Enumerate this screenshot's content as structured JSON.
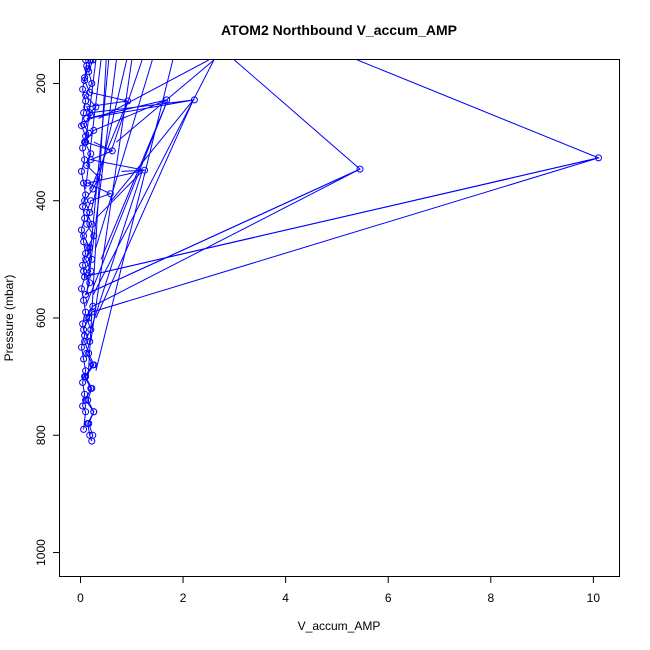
{
  "chart_data": {
    "type": "line",
    "title": "ATOM2 Northbound V_accum_AMP",
    "xlabel": "V_accum_AMP",
    "ylabel": "Pressure (mbar)",
    "xlim": [
      -0.4,
      10.5
    ],
    "ylim": [
      1040,
      160
    ],
    "y_reversed": true,
    "grid": false,
    "legend": "none",
    "x_ticks": [
      0,
      2,
      4,
      6,
      8,
      10
    ],
    "x_tick_labels": [
      "0",
      "2",
      "4",
      "6",
      "8",
      "10"
    ],
    "y_ticks": [
      200,
      400,
      600,
      800,
      1000
    ],
    "y_tick_labels": [
      "200",
      "400",
      "600",
      "800",
      "1000"
    ],
    "series": [
      {
        "color": "#0000ff",
        "marker": "open-circle",
        "points": [
          [
            0.22,
            810
          ],
          [
            0.18,
            800
          ],
          [
            0.14,
            780
          ],
          [
            0.26,
            760
          ],
          [
            0.1,
            740
          ],
          [
            0.2,
            720
          ],
          [
            0.08,
            700
          ],
          [
            0.24,
            680
          ],
          [
            0.12,
            660
          ],
          [
            0.18,
            640
          ],
          [
            0.06,
            620
          ],
          [
            0.16,
            600
          ],
          [
            0.22,
            590
          ],
          [
            10.1,
            327
          ],
          [
            0.14,
            528
          ],
          [
            0.2,
            520
          ],
          [
            0.1,
            500
          ],
          [
            0.18,
            480
          ],
          [
            0.06,
            460
          ],
          [
            0.22,
            440
          ],
          [
            0.12,
            420
          ],
          [
            0.2,
            400
          ],
          [
            0.58,
            388
          ],
          [
            0.14,
            370
          ],
          [
            1.25,
            348
          ],
          [
            0.2,
            330
          ],
          [
            0.62,
            315
          ],
          [
            0.1,
            300
          ],
          [
            0.16,
            285
          ],
          [
            0.06,
            270
          ],
          [
            0.2,
            255
          ],
          [
            0.12,
            240
          ],
          [
            0.92,
            230
          ],
          [
            0.18,
            215
          ],
          [
            0.08,
            195
          ],
          [
            0.14,
            175
          ],
          [
            0.2,
            160
          ]
        ]
      },
      {
        "color": "#0000ff",
        "marker": "open-circle",
        "points": [
          [
            0.24,
            800
          ],
          [
            0.16,
            780
          ],
          [
            0.26,
            760
          ],
          [
            0.14,
            740
          ],
          [
            0.22,
            720
          ],
          [
            0.1,
            700
          ],
          [
            0.26,
            680
          ],
          [
            0.16,
            660
          ],
          [
            0.08,
            640
          ],
          [
            0.2,
            620
          ],
          [
            0.12,
            600
          ],
          [
            0.24,
            580
          ],
          [
            5.45,
            346
          ],
          [
            0.1,
            560
          ],
          [
            0.18,
            540
          ],
          [
            0.06,
            520
          ],
          [
            0.22,
            500
          ],
          [
            0.14,
            480
          ],
          [
            0.26,
            460
          ],
          [
            0.12,
            440
          ],
          [
            0.18,
            420
          ],
          [
            0.08,
            400
          ],
          [
            0.24,
            380
          ],
          [
            0.36,
            360
          ],
          [
            0.12,
            340
          ],
          [
            0.2,
            320
          ],
          [
            0.08,
            300
          ],
          [
            0.26,
            280
          ],
          [
            1.68,
            228
          ],
          [
            0.12,
            260
          ],
          [
            2.22,
            228
          ],
          [
            0.18,
            250
          ],
          [
            0.3,
            240
          ],
          [
            0.1,
            220
          ],
          [
            0.22,
            200
          ],
          [
            0.16,
            180
          ],
          [
            0.24,
            160
          ]
        ]
      },
      {
        "color": "#0000ff",
        "marker": "open-circle",
        "points": [
          [
            0.06,
            790
          ],
          [
            0.1,
            760
          ],
          [
            0.04,
            750
          ],
          [
            0.08,
            730
          ],
          [
            0.04,
            710
          ],
          [
            0.1,
            690
          ],
          [
            0.06,
            670
          ],
          [
            0.02,
            650
          ],
          [
            0.08,
            630
          ],
          [
            0.04,
            610
          ],
          [
            0.1,
            590
          ],
          [
            0.06,
            570
          ],
          [
            0.02,
            550
          ],
          [
            0.08,
            530
          ],
          [
            0.04,
            510
          ],
          [
            0.1,
            490
          ],
          [
            0.06,
            470
          ],
          [
            0.02,
            450
          ],
          [
            0.08,
            430
          ],
          [
            0.04,
            410
          ],
          [
            0.1,
            390
          ],
          [
            0.06,
            370
          ],
          [
            0.02,
            350
          ],
          [
            0.08,
            330
          ],
          [
            0.04,
            310
          ],
          [
            0.1,
            290
          ],
          [
            0.02,
            272
          ],
          [
            0.06,
            250
          ],
          [
            0.1,
            230
          ],
          [
            0.04,
            210
          ],
          [
            0.08,
            190
          ],
          [
            0.12,
            170
          ],
          [
            0.1,
            160
          ]
        ]
      }
    ],
    "extra_lines": [
      {
        "points": [
          [
            0.2,
            620
          ],
          [
            1.2,
            350
          ],
          [
            0.3,
            430
          ]
        ]
      },
      {
        "points": [
          [
            0.1,
            580
          ],
          [
            1.7,
            228
          ],
          [
            0.4,
            500
          ]
        ]
      },
      {
        "points": [
          [
            0.3,
            600
          ],
          [
            2.2,
            228
          ],
          [
            0.6,
            400
          ]
        ]
      },
      {
        "points": [
          [
            0.25,
            560
          ],
          [
            2.6,
            160
          ],
          [
            0.7,
            300
          ]
        ]
      },
      {
        "points": [
          [
            0.3,
            690
          ],
          [
            1.8,
            160
          ]
        ]
      },
      {
        "points": [
          [
            0.2,
            640
          ],
          [
            1.0,
            160
          ]
        ]
      },
      {
        "points": [
          [
            0.15,
            700
          ],
          [
            0.5,
            160
          ]
        ]
      },
      {
        "points": [
          [
            0.6,
            315
          ],
          [
            1.2,
            160
          ]
        ]
      },
      {
        "points": [
          [
            0.35,
            260
          ],
          [
            2.5,
            160
          ]
        ]
      },
      {
        "points": [
          [
            0.2,
            420
          ],
          [
            0.9,
            160
          ]
        ]
      },
      {
        "points": [
          [
            0.1,
            380
          ],
          [
            0.4,
            160
          ]
        ]
      },
      {
        "points": [
          [
            0.12,
            560
          ],
          [
            0.7,
            160
          ]
        ]
      },
      {
        "points": [
          [
            0.3,
            480
          ],
          [
            1.4,
            160
          ]
        ]
      },
      {
        "points": [
          [
            0.16,
            520
          ],
          [
            0.55,
            160
          ]
        ]
      },
      {
        "points": [
          [
            0.1,
            300
          ],
          [
            0.3,
            160
          ]
        ]
      },
      {
        "points": [
          [
            3.0,
            160
          ],
          [
            5.45,
            346
          ],
          [
            0.1,
            560
          ]
        ]
      },
      {
        "points": [
          [
            0.8,
            350
          ],
          [
            1.25,
            348
          ]
        ]
      },
      {
        "points": [
          [
            0.26,
            300
          ],
          [
            0.62,
            315
          ]
        ]
      },
      {
        "points": [
          [
            0.2,
            380
          ],
          [
            0.92,
            230
          ]
        ]
      },
      {
        "points": [
          [
            5.4,
            160
          ],
          [
            10.1,
            327
          ],
          [
            0.14,
            528
          ]
        ]
      }
    ]
  }
}
